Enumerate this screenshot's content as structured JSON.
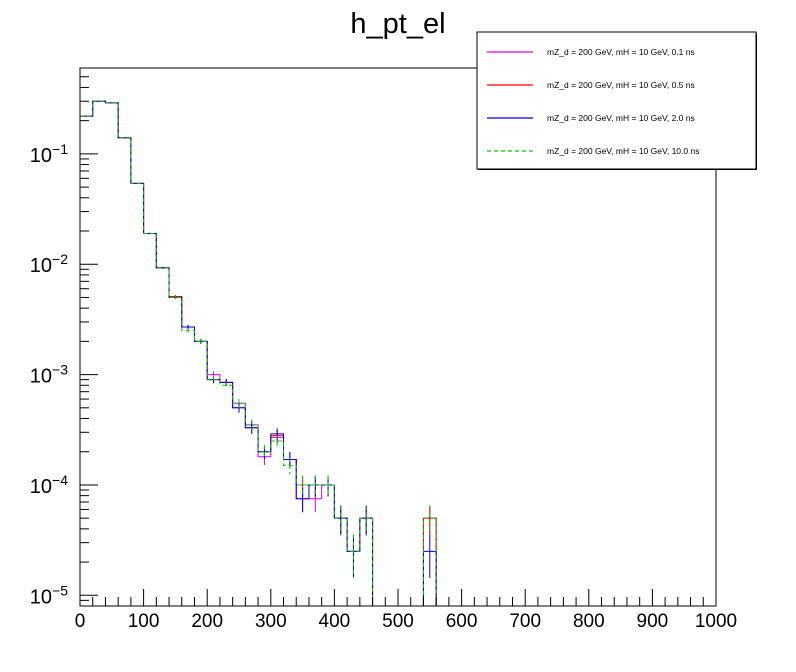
{
  "chart_data": {
    "type": "line",
    "title": "h_pt_el",
    "xlabel": "",
    "ylabel": "",
    "xlim": [
      0,
      1000
    ],
    "ylim": [
      8e-06,
      0.6
    ],
    "yscale": "log",
    "bin_width": 20,
    "x_ticks": [
      0,
      100,
      200,
      300,
      400,
      500,
      600,
      700,
      800,
      900,
      1000
    ],
    "x_tick_labels": [
      "0",
      "100",
      "200",
      "300",
      "400",
      "500",
      "600",
      "700",
      "800",
      "900",
      "1000"
    ],
    "y_ticks": [
      1e-05,
      0.0001,
      0.001,
      0.01,
      0.1
    ],
    "y_tick_bases": [
      "10",
      "10",
      "10",
      "10",
      "10"
    ],
    "y_tick_exponents": [
      "−5",
      "−4",
      "−3",
      "−2",
      "−1"
    ],
    "legend_position": "top-right",
    "series": [
      {
        "name": "mZ_d = 200 GeV, mH = 10 GeV, 0.1 ns",
        "color": "#e000e0",
        "dash": "solid",
        "values": [
          0.22,
          0.3,
          0.29,
          0.14,
          0.054,
          0.019,
          0.0093,
          0.0051,
          0.0027,
          0.002,
          0.001,
          0.00085,
          0.00055,
          0.00035,
          0.00018,
          0.00027,
          0.00017,
          7.5e-05,
          7.5e-05,
          0.0001,
          5e-05,
          2.5e-05,
          5e-05,
          0,
          0,
          0,
          0,
          5e-05,
          0,
          0,
          0,
          0,
          0,
          0,
          0,
          0,
          0,
          0,
          0,
          0,
          0,
          0,
          0,
          0,
          0,
          0,
          0,
          0,
          0,
          0
        ]
      },
      {
        "name": "mZ_d = 200 GeV, mH = 10 GeV, 0.5 ns",
        "color": "#ff0000",
        "dash": "solid",
        "values": [
          0.22,
          0.3,
          0.29,
          0.14,
          0.054,
          0.019,
          0.0093,
          0.0051,
          0.0027,
          0.002,
          0.0009,
          0.00085,
          0.0005,
          0.00033,
          0.0002,
          0.00028,
          0.00017,
          0.0001,
          0.0001,
          0.0001,
          5e-05,
          2.5e-05,
          5e-05,
          0,
          0,
          0,
          0,
          5e-05,
          0,
          0,
          0,
          0,
          0,
          0,
          0,
          0,
          0,
          0,
          0,
          0,
          0,
          0,
          0,
          0,
          0,
          0,
          0,
          0,
          0,
          0
        ]
      },
      {
        "name": "mZ_d = 200 GeV, mH = 10 GeV, 2.0 ns",
        "color": "#0000cc",
        "dash": "solid",
        "values": [
          0.22,
          0.3,
          0.29,
          0.14,
          0.054,
          0.019,
          0.0093,
          0.005,
          0.0027,
          0.002,
          0.0009,
          0.00085,
          0.0005,
          0.00033,
          0.0002,
          0.00029,
          0.00017,
          7.5e-05,
          0.0001,
          0.0001,
          5e-05,
          2.5e-05,
          5e-05,
          0,
          0,
          0,
          0,
          2.5e-05,
          0,
          0,
          0,
          0,
          0,
          0,
          0,
          0,
          0,
          0,
          0,
          0,
          0,
          0,
          0,
          0,
          0,
          0,
          0,
          0,
          0,
          0
        ]
      },
      {
        "name": "mZ_d = 200 GeV, mH = 10 GeV, 10.0 ns",
        "color": "#00cc00",
        "dash": "dashed",
        "values": [
          0.22,
          0.3,
          0.29,
          0.14,
          0.054,
          0.019,
          0.0093,
          0.005,
          0.0025,
          0.002,
          0.0009,
          0.0008,
          0.00055,
          0.00035,
          0.0002,
          0.00025,
          0.00015,
          0.0001,
          0.0001,
          0.0001,
          5e-05,
          2.5e-05,
          5e-05,
          0,
          0,
          0,
          0,
          5e-05,
          0,
          0,
          0,
          0,
          0,
          0,
          0,
          0,
          0,
          0,
          0,
          0,
          0,
          0,
          0,
          0,
          0,
          0,
          0,
          0,
          0,
          0
        ]
      }
    ]
  }
}
